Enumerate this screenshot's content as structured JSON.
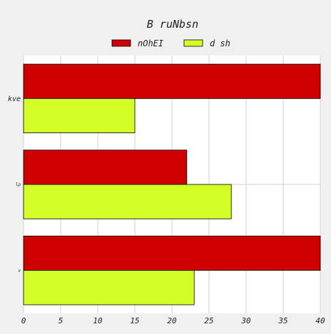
{
  "chart_data": {
    "type": "bar",
    "orientation": "horizontal",
    "title": "B ruNbsn",
    "xlabel": "",
    "ylabel": "",
    "categories": [
      "kve",
      "lp",
      "v"
    ],
    "series": [
      {
        "name": "nOhEI",
        "values": [
          40,
          22,
          40
        ],
        "color": "#d10000"
      },
      {
        "name": "d sh",
        "values": [
          15,
          28,
          23
        ],
        "color": "#d4ff26"
      }
    ],
    "xlim": [
      0,
      40
    ],
    "xticks": [
      "0",
      "5",
      "10",
      "15",
      "20",
      "25",
      "30",
      "35",
      "40"
    ],
    "grid": true,
    "legend_position": "top-center"
  },
  "colors": {
    "background": "#f0f0f0",
    "plot_background": "#ffffff",
    "grid": "#d0d0d0",
    "bar_edge": "#000000"
  }
}
